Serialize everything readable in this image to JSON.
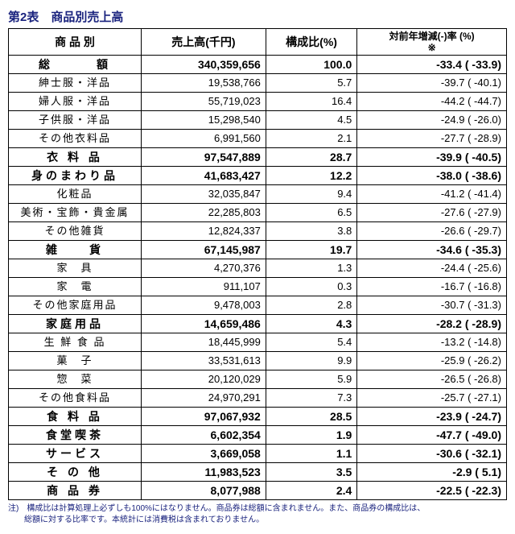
{
  "title": "第2表　商品別売上高",
  "headers": {
    "category": "商 品 別",
    "sales": "売上高(千円)",
    "ratio": "構成比(%)",
    "yoy": "対前年増減(-)率 (%)\n※"
  },
  "rows": [
    {
      "bold": true,
      "cat": "総　　　額",
      "sales": "340,359,656",
      "ratio": "100.0",
      "yoy": "-33.4 ( -33.9)"
    },
    {
      "bold": false,
      "cat": "紳士服・洋品",
      "sales": "19,538,766",
      "ratio": "5.7",
      "yoy": "-39.7 ( -40.1)"
    },
    {
      "bold": false,
      "cat": "婦人服・洋品",
      "sales": "55,719,023",
      "ratio": "16.4",
      "yoy": "-44.2 ( -44.7)"
    },
    {
      "bold": false,
      "cat": "子供服・洋品",
      "sales": "15,298,540",
      "ratio": "4.5",
      "yoy": "-24.9 ( -26.0)"
    },
    {
      "bold": false,
      "cat": "その他衣料品",
      "sales": "6,991,560",
      "ratio": "2.1",
      "yoy": "-27.7 ( -28.9)"
    },
    {
      "bold": true,
      "cat": "衣 料 品",
      "sales": "97,547,889",
      "ratio": "28.7",
      "yoy": "-39.9 ( -40.5)"
    },
    {
      "bold": true,
      "cat": "身のまわり品",
      "sales": "41,683,427",
      "ratio": "12.2",
      "yoy": "-38.0 ( -38.6)"
    },
    {
      "bold": false,
      "cat": "化粧品",
      "sales": "32,035,847",
      "ratio": "9.4",
      "yoy": "-41.2 ( -41.4)"
    },
    {
      "bold": false,
      "cat": "美術・宝飾・貴金属",
      "sales": "22,285,803",
      "ratio": "6.5",
      "yoy": "-27.6 ( -27.9)"
    },
    {
      "bold": false,
      "cat": "その他雑貨",
      "sales": "12,824,337",
      "ratio": "3.8",
      "yoy": "-26.6 ( -29.7)"
    },
    {
      "bold": true,
      "cat": "雑　　貨",
      "sales": "67,145,987",
      "ratio": "19.7",
      "yoy": "-34.6 ( -35.3)"
    },
    {
      "bold": false,
      "cat": "家　具",
      "sales": "4,270,376",
      "ratio": "1.3",
      "yoy": "-24.4 ( -25.6)"
    },
    {
      "bold": false,
      "cat": "家　電",
      "sales": "911,107",
      "ratio": "0.3",
      "yoy": "-16.7 ( -16.8)"
    },
    {
      "bold": false,
      "cat": "その他家庭用品",
      "sales": "9,478,003",
      "ratio": "2.8",
      "yoy": "-30.7 ( -31.3)"
    },
    {
      "bold": true,
      "cat": "家庭用品",
      "sales": "14,659,486",
      "ratio": "4.3",
      "yoy": "-28.2 ( -28.9)"
    },
    {
      "bold": false,
      "cat": "生 鮮 食 品",
      "sales": "18,445,999",
      "ratio": "5.4",
      "yoy": "-13.2 ( -14.8)"
    },
    {
      "bold": false,
      "cat": "菓　子",
      "sales": "33,531,613",
      "ratio": "9.9",
      "yoy": "-25.9 ( -26.2)"
    },
    {
      "bold": false,
      "cat": "惣　菜",
      "sales": "20,120,029",
      "ratio": "5.9",
      "yoy": "-26.5 ( -26.8)"
    },
    {
      "bold": false,
      "cat": "その他食料品",
      "sales": "24,970,291",
      "ratio": "7.3",
      "yoy": "-25.7 ( -27.1)"
    },
    {
      "bold": true,
      "cat": "食 料 品",
      "sales": "97,067,932",
      "ratio": "28.5",
      "yoy": "-23.9 ( -24.7)"
    },
    {
      "bold": true,
      "cat": "食堂喫茶",
      "sales": "6,602,354",
      "ratio": "1.9",
      "yoy": "-47.7 ( -49.0)"
    },
    {
      "bold": true,
      "cat": "サービス",
      "sales": "3,669,058",
      "ratio": "1.1",
      "yoy": "-30.6 ( -32.1)"
    },
    {
      "bold": true,
      "cat": "そ の 他",
      "sales": "11,983,523",
      "ratio": "3.5",
      "yoy": "-2.9 (  5.1)"
    },
    {
      "bold": true,
      "cat": "商 品 券",
      "sales": "8,077,988",
      "ratio": "2.4",
      "yoy": "-22.5 ( -22.3)"
    }
  ],
  "footnote": "注)　構成比は計算処理上必ずしも100%にはなりません。商品券は総額に含まれません。また、商品券の構成比は、\n　　総額に対する比率です。本統計には消費税は含まれておりません。"
}
